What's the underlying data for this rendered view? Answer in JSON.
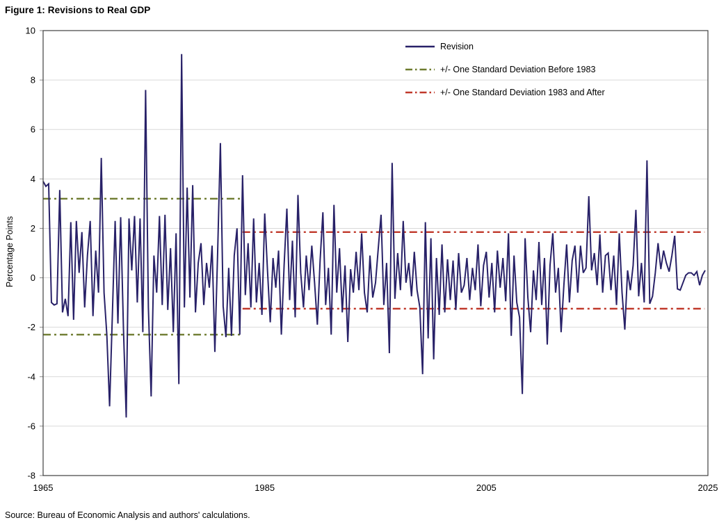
{
  "chart_data": {
    "type": "line",
    "title": "Figure 1: Revisions to Real GDP",
    "source": "Source: Bureau of Economic Analysis and authors' calculations.",
    "xlabel": "",
    "ylabel": "Percentage Points",
    "xlim": [
      1965,
      2025
    ],
    "ylim": [
      -8,
      10
    ],
    "xticks": [
      1965,
      1985,
      2005,
      2025
    ],
    "yticks": [
      -8,
      -6,
      -4,
      -2,
      0,
      2,
      4,
      6,
      8,
      10
    ],
    "grid": "horizontal",
    "gridline_color": "#d9d9d9",
    "axis_color": "#404040",
    "legend_position": "top-right-inside",
    "series": [
      {
        "name": "Revision",
        "color": "#282168",
        "style": "solid",
        "x_start": 1965,
        "x_step": 0.25,
        "frequency": "quarterly",
        "values": [
          3.9,
          3.7,
          3.8,
          -1.0,
          -1.1,
          -1.05,
          3.55,
          -1.4,
          -0.85,
          -1.55,
          2.25,
          -1.7,
          2.3,
          0.2,
          1.85,
          -1.2,
          0.9,
          2.3,
          -1.55,
          1.1,
          -0.6,
          4.85,
          -0.6,
          -2.3,
          -5.2,
          -1.5,
          2.3,
          -1.85,
          2.45,
          -2.05,
          -5.65,
          2.4,
          0.3,
          2.5,
          -1.0,
          2.4,
          -2.2,
          7.6,
          -1.2,
          -4.8,
          0.9,
          -0.6,
          2.5,
          -1.1,
          2.55,
          -1.3,
          1.2,
          -2.2,
          1.8,
          -4.3,
          9.05,
          -1.2,
          3.65,
          -0.8,
          3.75,
          -1.4,
          0.6,
          1.4,
          -1.1,
          0.6,
          -0.4,
          1.3,
          -3.0,
          1.0,
          5.45,
          -1.15,
          -2.4,
          0.4,
          -2.35,
          0.9,
          2.0,
          -2.3,
          4.15,
          -0.7,
          1.4,
          -1.2,
          2.4,
          -1.0,
          0.6,
          -1.5,
          2.6,
          0.3,
          -1.8,
          0.8,
          -0.4,
          1.1,
          -2.3,
          0.5,
          2.8,
          -0.9,
          1.5,
          -1.6,
          3.35,
          0.2,
          -1.2,
          0.9,
          -0.5,
          1.3,
          -0.2,
          -1.9,
          0.7,
          2.65,
          -1.1,
          0.4,
          -2.3,
          2.95,
          -0.6,
          1.2,
          -1.4,
          0.5,
          -2.6,
          0.35,
          -0.6,
          1.05,
          -0.5,
          1.8,
          -0.6,
          -1.4,
          0.9,
          -0.8,
          -0.2,
          1.2,
          2.55,
          -1.1,
          0.6,
          -3.05,
          4.65,
          -0.85,
          1.0,
          -0.5,
          2.3,
          -0.2,
          0.6,
          -0.75,
          1.05,
          -0.5,
          -1.2,
          -3.9,
          2.25,
          -2.45,
          1.6,
          -3.3,
          0.8,
          -1.5,
          1.35,
          -1.4,
          0.75,
          -0.9,
          0.7,
          -1.3,
          1.0,
          -0.6,
          -0.3,
          0.8,
          -0.9,
          0.4,
          -0.5,
          1.35,
          -1.15,
          0.5,
          1.05,
          -0.8,
          0.6,
          -1.4,
          1.1,
          -0.4,
          0.8,
          -0.95,
          1.8,
          -2.35,
          0.9,
          -1.0,
          -1.6,
          -4.7,
          1.6,
          -0.8,
          -2.2,
          0.3,
          -0.9,
          1.45,
          -1.1,
          0.8,
          -2.7,
          0.5,
          1.8,
          -0.6,
          0.4,
          -2.2,
          -0.3,
          1.35,
          -1.0,
          0.7,
          1.3,
          -0.6,
          1.3,
          0.2,
          0.4,
          3.3,
          0.3,
          1.0,
          -0.3,
          1.75,
          -0.6,
          0.9,
          1.0,
          -0.5,
          0.9,
          -1.1,
          1.8,
          -0.6,
          -2.1,
          0.3,
          -0.5,
          0.5,
          2.75,
          -0.75,
          0.6,
          -1.0,
          4.75,
          -1.05,
          -0.75,
          0.2,
          1.4,
          0.35,
          1.1,
          0.6,
          0.25,
          0.9,
          1.7,
          -0.45,
          -0.5,
          -0.2,
          0.1,
          0.2,
          0.2,
          0.1,
          0.25,
          -0.3,
          0.1,
          0.3
        ]
      }
    ],
    "bands": [
      {
        "name": "+/- One Standard Deviation Before 1983",
        "color": "#6e7b2f",
        "style": "dash-dot",
        "x_from": 1965,
        "x_to": 1983,
        "upper": 3.2,
        "lower": -2.3
      },
      {
        "name": "+/- One Standard Deviation 1983 and After",
        "color": "#c0392b",
        "style": "dash-dot",
        "x_from": 1983,
        "x_to": 2024.7,
        "upper": 1.85,
        "lower": -1.25
      }
    ]
  }
}
